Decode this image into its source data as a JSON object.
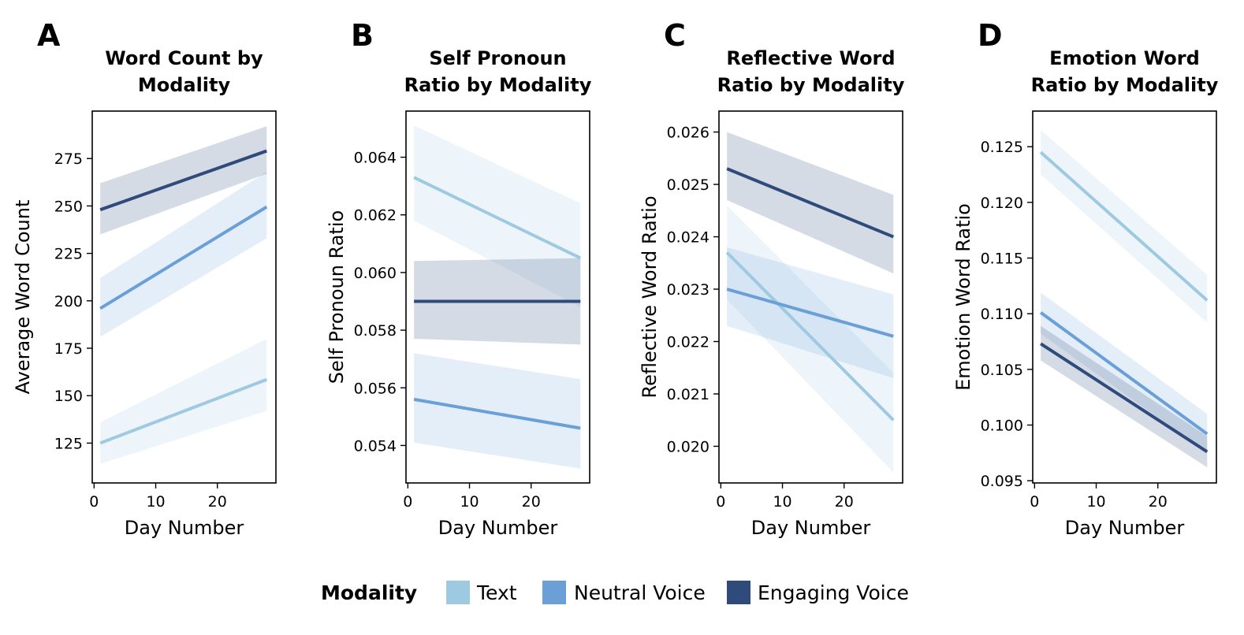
{
  "legend": {
    "title": "Modality",
    "entries": [
      {
        "name": "Text",
        "color": "#9ecae1"
      },
      {
        "name": "Neutral Voice",
        "color": "#6a9fd8"
      },
      {
        "name": "Engaging Voice",
        "color": "#2f4b7c"
      }
    ]
  },
  "chart_data": [
    {
      "type": "line",
      "letter": "A",
      "title_lines": [
        "Word Count by",
        "Modality"
      ],
      "xlabel": "Day Number",
      "ylabel": "Average Word Count",
      "xlim": [
        -0.3,
        29.5
      ],
      "ylim": [
        104,
        300
      ],
      "xticks": [
        0,
        10,
        20
      ],
      "xtick_labels": [
        "0",
        "10",
        "20"
      ],
      "yticks": [
        125,
        150,
        175,
        200,
        225,
        250,
        275
      ],
      "ytick_labels": [
        "125",
        "150",
        "175",
        "200",
        "225",
        "250",
        "275"
      ],
      "x": [
        1,
        28
      ],
      "series": [
        {
          "name": "Text",
          "color": "#9ecae1",
          "values": [
            125,
            158.5
          ],
          "ci_lower": [
            114,
            142
          ],
          "ci_upper": [
            136,
            180
          ]
        },
        {
          "name": "Neutral Voice",
          "color": "#6a9fd8",
          "values": [
            196,
            249.5
          ],
          "ci_lower": [
            181,
            233
          ],
          "ci_upper": [
            212,
            268
          ]
        },
        {
          "name": "Engaging Voice",
          "color": "#2f4b7c",
          "values": [
            248,
            279
          ],
          "ci_lower": [
            235,
            267
          ],
          "ci_upper": [
            262,
            292
          ]
        }
      ]
    },
    {
      "type": "line",
      "letter": "B",
      "title_lines": [
        "Self Pronoun",
        "Ratio by Modality"
      ],
      "xlabel": "Day Number",
      "ylabel": "Self Pronoun Ratio",
      "xlim": [
        -0.3,
        29.5
      ],
      "ylim": [
        0.0527,
        0.0656
      ],
      "xticks": [
        0,
        10,
        20
      ],
      "xtick_labels": [
        "0",
        "10",
        "20"
      ],
      "yticks": [
        0.054,
        0.056,
        0.058,
        0.06,
        0.062,
        0.064
      ],
      "ytick_labels": [
        "0.054",
        "0.056",
        "0.058",
        "0.060",
        "0.062",
        "0.064"
      ],
      "x": [
        1,
        28
      ],
      "series": [
        {
          "name": "Text",
          "color": "#9ecae1",
          "values": [
            0.0633,
            0.0605
          ],
          "ci_lower": [
            0.0618,
            0.0588
          ],
          "ci_upper": [
            0.0651,
            0.0624
          ]
        },
        {
          "name": "Neutral Voice",
          "color": "#6a9fd8",
          "values": [
            0.0556,
            0.0546
          ],
          "ci_lower": [
            0.0541,
            0.0532
          ],
          "ci_upper": [
            0.0572,
            0.0563
          ]
        },
        {
          "name": "Engaging Voice",
          "color": "#2f4b7c",
          "values": [
            0.059,
            0.059
          ],
          "ci_lower": [
            0.0577,
            0.0575
          ],
          "ci_upper": [
            0.0604,
            0.0605
          ]
        }
      ]
    },
    {
      "type": "line",
      "letter": "C",
      "title_lines": [
        "Reflective Word",
        "Ratio by Modality"
      ],
      "xlabel": "Day Number",
      "ylabel": "Reflective Word Ratio",
      "xlim": [
        -0.3,
        29.5
      ],
      "ylim": [
        0.0193,
        0.0264
      ],
      "xticks": [
        0,
        10,
        20
      ],
      "xtick_labels": [
        "0",
        "10",
        "20"
      ],
      "yticks": [
        0.02,
        0.021,
        0.022,
        0.023,
        0.024,
        0.025,
        0.026
      ],
      "ytick_labels": [
        "0.020",
        "0.021",
        "0.022",
        "0.023",
        "0.024",
        "0.025",
        "0.026"
      ],
      "x": [
        1,
        28
      ],
      "series": [
        {
          "name": "Text",
          "color": "#9ecae1",
          "values": [
            0.0237,
            0.0205
          ],
          "ci_lower": [
            0.0228,
            0.0195
          ],
          "ci_upper": [
            0.0246,
            0.0214
          ]
        },
        {
          "name": "Neutral Voice",
          "color": "#6a9fd8",
          "values": [
            0.023,
            0.0221
          ],
          "ci_lower": [
            0.0223,
            0.0213
          ],
          "ci_upper": [
            0.0238,
            0.0229
          ]
        },
        {
          "name": "Engaging Voice",
          "color": "#2f4b7c",
          "values": [
            0.0253,
            0.024
          ],
          "ci_lower": [
            0.0247,
            0.0233
          ],
          "ci_upper": [
            0.026,
            0.0248
          ]
        }
      ]
    },
    {
      "type": "line",
      "letter": "D",
      "title_lines": [
        "Emotion Word",
        "Ratio by Modality"
      ],
      "xlabel": "Day Number",
      "ylabel": "Emotion Word Ratio",
      "xlim": [
        -0.3,
        29.5
      ],
      "ylim": [
        0.0948,
        0.1282
      ],
      "xticks": [
        0,
        10,
        20
      ],
      "xtick_labels": [
        "0",
        "10",
        "20"
      ],
      "yticks": [
        0.095,
        0.1,
        0.105,
        0.11,
        0.115,
        0.12,
        0.125
      ],
      "ytick_labels": [
        "0.095",
        "0.100",
        "0.105",
        "0.110",
        "0.115",
        "0.120",
        "0.125"
      ],
      "x": [
        1,
        28
      ],
      "series": [
        {
          "name": "Text",
          "color": "#9ecae1",
          "values": [
            0.1245,
            0.1112
          ],
          "ci_lower": [
            0.1225,
            0.1092
          ],
          "ci_upper": [
            0.1265,
            0.1135
          ]
        },
        {
          "name": "Neutral Voice",
          "color": "#6a9fd8",
          "values": [
            0.1101,
            0.0992
          ],
          "ci_lower": [
            0.1082,
            0.0975
          ],
          "ci_upper": [
            0.1119,
            0.101
          ]
        },
        {
          "name": "Engaging Voice",
          "color": "#2f4b7c",
          "values": [
            0.1073,
            0.0976
          ],
          "ci_lower": [
            0.1058,
            0.0962
          ],
          "ci_upper": [
            0.1089,
            0.099
          ]
        }
      ]
    }
  ]
}
